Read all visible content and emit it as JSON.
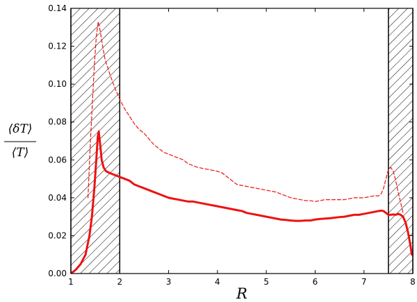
{
  "chart_data": {
    "type": "line",
    "xlabel": "R",
    "ylabel": {
      "numerator": "⟨δT⟩",
      "denominator": "⟨T⟩"
    },
    "xlim": [
      1,
      8
    ],
    "ylim": [
      0,
      0.14
    ],
    "x_ticks": [
      1,
      2,
      3,
      4,
      5,
      6,
      7,
      8
    ],
    "y_ticks": [
      0.0,
      0.02,
      0.04,
      0.06,
      0.08,
      0.1,
      0.12,
      0.14
    ],
    "x_tick_labels": [
      "1",
      "2",
      "3",
      "4",
      "5",
      "6",
      "7",
      "8"
    ],
    "y_tick_labels": [
      "0.00",
      "0.02",
      "0.04",
      "0.06",
      "0.08",
      "0.10",
      "0.12",
      "0.14"
    ],
    "grid": false,
    "shaded_regions": [
      {
        "x_start": 1.0,
        "x_end": 2.0,
        "pattern": "hatched"
      },
      {
        "x_start": 7.5,
        "x_end": 8.0,
        "pattern": "hatched"
      }
    ],
    "series": [
      {
        "style": "solid",
        "color": "#ee1111",
        "x": [
          1.0,
          1.1,
          1.2,
          1.3,
          1.38,
          1.43,
          1.48,
          1.52,
          1.55,
          1.57,
          1.6,
          1.63,
          1.67,
          1.72,
          1.8,
          1.9,
          2.0,
          2.1,
          2.2,
          2.3,
          2.4,
          2.5,
          2.6,
          2.7,
          2.8,
          2.9,
          3.0,
          3.1,
          3.2,
          3.3,
          3.4,
          3.5,
          3.6,
          3.7,
          3.8,
          3.9,
          4.0,
          4.1,
          4.2,
          4.3,
          4.4,
          4.5,
          4.6,
          4.7,
          4.8,
          4.9,
          5.0,
          5.1,
          5.2,
          5.3,
          5.4,
          5.5,
          5.6,
          5.7,
          5.8,
          5.9,
          6.0,
          6.1,
          6.2,
          6.3,
          6.4,
          6.5,
          6.6,
          6.7,
          6.8,
          6.9,
          7.0,
          7.1,
          7.2,
          7.3,
          7.35,
          7.4,
          7.45,
          7.5,
          7.55,
          7.6,
          7.65,
          7.7,
          7.75,
          7.8,
          7.85,
          7.9,
          7.95,
          7.98
        ],
        "y": [
          0.0,
          0.002,
          0.005,
          0.01,
          0.02,
          0.03,
          0.045,
          0.06,
          0.072,
          0.075,
          0.068,
          0.06,
          0.056,
          0.054,
          0.053,
          0.052,
          0.051,
          0.05,
          0.049,
          0.047,
          0.046,
          0.045,
          0.044,
          0.043,
          0.042,
          0.041,
          0.04,
          0.0395,
          0.039,
          0.0385,
          0.038,
          0.038,
          0.0375,
          0.037,
          0.0365,
          0.036,
          0.0355,
          0.035,
          0.0345,
          0.034,
          0.0335,
          0.033,
          0.032,
          0.0315,
          0.031,
          0.0305,
          0.03,
          0.0295,
          0.029,
          0.0285,
          0.0283,
          0.028,
          0.0278,
          0.0278,
          0.028,
          0.028,
          0.0285,
          0.0288,
          0.029,
          0.0292,
          0.0295,
          0.0298,
          0.03,
          0.0305,
          0.031,
          0.031,
          0.0315,
          0.032,
          0.0325,
          0.033,
          0.0332,
          0.033,
          0.032,
          0.031,
          0.031,
          0.0312,
          0.031,
          0.0315,
          0.031,
          0.03,
          0.027,
          0.022,
          0.015,
          0.01
        ]
      },
      {
        "style": "dashed",
        "color": "#ee1111",
        "x": [
          1.35,
          1.4,
          1.44,
          1.48,
          1.52,
          1.56,
          1.6,
          1.65,
          1.7,
          1.8,
          1.9,
          2.0,
          2.1,
          2.2,
          2.3,
          2.4,
          2.5,
          2.6,
          2.7,
          2.8,
          2.9,
          3.0,
          3.1,
          3.2,
          3.3,
          3.4,
          3.5,
          3.6,
          3.7,
          3.8,
          3.9,
          4.0,
          4.1,
          4.2,
          4.3,
          4.4,
          4.5,
          4.6,
          4.7,
          4.8,
          4.9,
          5.0,
          5.1,
          5.2,
          5.3,
          5.4,
          5.5,
          5.6,
          5.7,
          5.8,
          5.9,
          6.0,
          6.1,
          6.2,
          6.3,
          6.4,
          6.5,
          6.6,
          6.7,
          6.8,
          6.9,
          7.0,
          7.1,
          7.2,
          7.3,
          7.35,
          7.4,
          7.45,
          7.5,
          7.55,
          7.6,
          7.65,
          7.7,
          7.8
        ],
        "y": [
          0.04,
          0.07,
          0.09,
          0.11,
          0.125,
          0.133,
          0.128,
          0.12,
          0.113,
          0.105,
          0.098,
          0.092,
          0.087,
          0.083,
          0.079,
          0.076,
          0.074,
          0.071,
          0.068,
          0.066,
          0.064,
          0.063,
          0.062,
          0.061,
          0.06,
          0.058,
          0.057,
          0.056,
          0.0555,
          0.055,
          0.0545,
          0.054,
          0.053,
          0.051,
          0.049,
          0.047,
          0.0465,
          0.046,
          0.0455,
          0.045,
          0.0445,
          0.044,
          0.0435,
          0.043,
          0.042,
          0.041,
          0.04,
          0.0395,
          0.039,
          0.0385,
          0.0385,
          0.038,
          0.0385,
          0.039,
          0.039,
          0.039,
          0.039,
          0.039,
          0.0395,
          0.04,
          0.04,
          0.04,
          0.0405,
          0.041,
          0.041,
          0.042,
          0.045,
          0.05,
          0.055,
          0.056,
          0.054,
          0.049,
          0.043,
          0.032
        ]
      }
    ]
  }
}
